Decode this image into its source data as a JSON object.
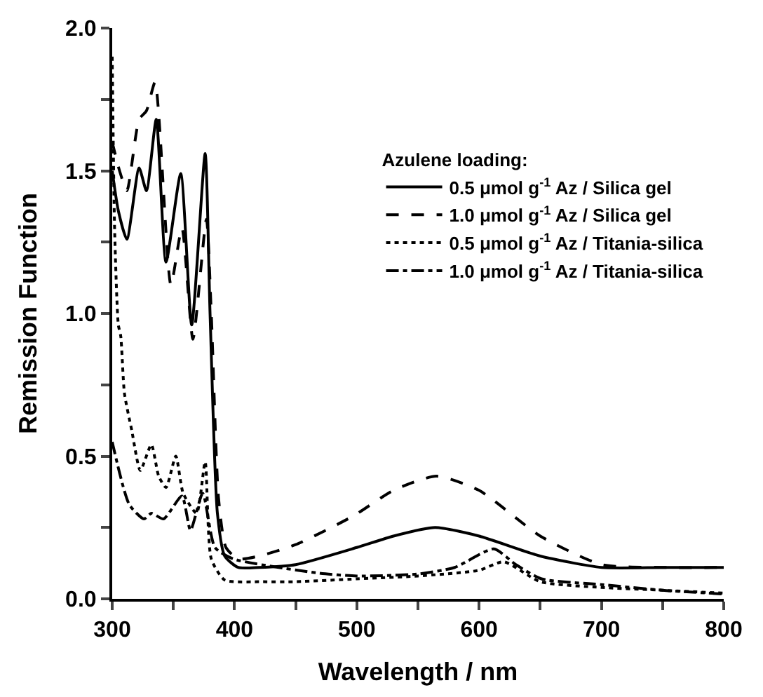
{
  "chart_data": {
    "type": "line",
    "xlabel": "Wavelength / nm",
    "ylabel": "Remission Function",
    "legend_title": "Azulene loading:",
    "legend": "top right",
    "marker": "none",
    "xlim": [
      300,
      800
    ],
    "ylim": [
      0,
      2.0
    ],
    "xticks": [
      300,
      {
        "value": 350,
        "label": null
      },
      400,
      {
        "value": 450,
        "label": null
      },
      500,
      {
        "value": 550,
        "label": null
      },
      600,
      {
        "value": 650,
        "label": null
      },
      700,
      {
        "value": 750,
        "label": null
      },
      800
    ],
    "yticks": [
      {
        "value": 0,
        "label": "0.0"
      },
      {
        "value": 0.25,
        "label": null
      },
      {
        "value": 0.5,
        "label": "0.5"
      },
      {
        "value": 0.75,
        "label": null
      },
      {
        "value": 1.0,
        "label": "1.0"
      },
      {
        "value": 1.25,
        "label": null
      },
      {
        "value": 1.5,
        "label": "1.5"
      },
      {
        "value": 1.75,
        "label": null
      },
      {
        "value": 2.0,
        "label": "2.0"
      }
    ],
    "series": [
      {
        "name": "0.5 μmol g$^{-1}$ Az / Silica gel",
        "color": "#000000",
        "line_style": "solid",
        "x": [
          300,
          305,
          312,
          322,
          328,
          336,
          344,
          356,
          365,
          376,
          380,
          386,
          392,
          403,
          420,
          450,
          500,
          530,
          564,
          600,
          650,
          700,
          750,
          800
        ],
        "values": [
          1.5,
          1.36,
          1.26,
          1.51,
          1.43,
          1.68,
          1.18,
          1.49,
          0.96,
          1.56,
          1.0,
          0.3,
          0.15,
          0.11,
          0.11,
          0.12,
          0.18,
          0.22,
          0.25,
          0.22,
          0.15,
          0.11,
          0.11,
          0.11
        ]
      },
      {
        "name": "1.0 μmol g$^{-1}$ Az / Silica gel",
        "color": "#000000",
        "line_style": "dashed",
        "x": [
          300,
          306,
          312,
          322,
          328,
          335,
          348,
          357,
          366,
          377,
          381,
          387,
          393,
          403,
          420,
          450,
          497,
          530,
          565,
          600,
          650,
          700,
          750,
          800
        ],
        "values": [
          1.6,
          1.5,
          1.43,
          1.68,
          1.71,
          1.81,
          1.1,
          1.3,
          0.91,
          1.33,
          1.0,
          0.35,
          0.18,
          0.14,
          0.15,
          0.19,
          0.29,
          0.38,
          0.43,
          0.38,
          0.22,
          0.12,
          0.11,
          0.11
        ]
      },
      {
        "name": "0.5 μmol g$^{-1}$ Az / Titania-silica",
        "color": "#000000",
        "line_style": "dotted",
        "x": [
          300,
          302,
          305,
          307,
          310,
          316,
          323,
          332,
          338,
          344,
          352,
          358,
          369,
          376,
          381,
          392,
          423,
          450,
          500,
          550,
          600,
          620,
          650,
          700,
          750,
          800
        ],
        "values": [
          1.9,
          1.29,
          0.96,
          0.92,
          0.72,
          0.59,
          0.45,
          0.54,
          0.43,
          0.39,
          0.5,
          0.37,
          0.3,
          0.48,
          0.14,
          0.066,
          0.06,
          0.06,
          0.07,
          0.08,
          0.1,
          0.13,
          0.06,
          0.04,
          0.03,
          0.02
        ]
      },
      {
        "name": "1.0 μmol g$^{-1}$ Az / Titania-silica",
        "color": "#000000",
        "line_style": "dashdot",
        "x": [
          300,
          314,
          326,
          332,
          342,
          357,
          364,
          374,
          384,
          399,
          469,
          500,
          550,
          580,
          612,
          630,
          651,
          700,
          750,
          800
        ],
        "values": [
          0.55,
          0.33,
          0.28,
          0.3,
          0.28,
          0.36,
          0.24,
          0.37,
          0.18,
          0.14,
          0.09,
          0.08,
          0.087,
          0.11,
          0.175,
          0.12,
          0.07,
          0.05,
          0.03,
          0.017
        ]
      }
    ]
  }
}
